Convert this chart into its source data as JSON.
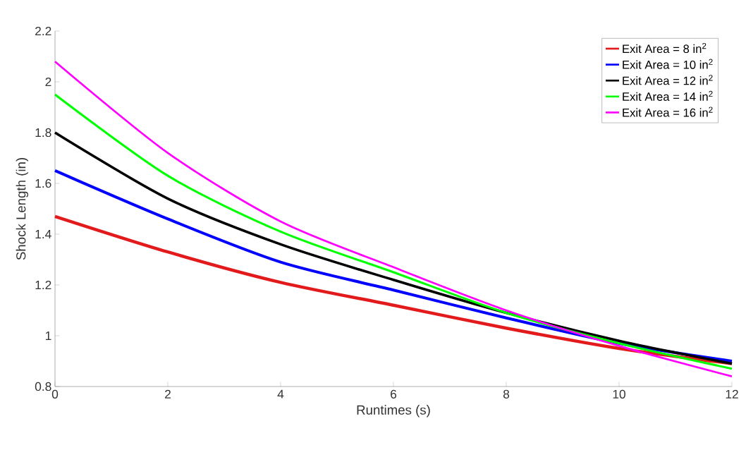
{
  "chart_data": {
    "type": "line",
    "xlabel": "Runtimes (s)",
    "ylabel": "Shock Length (in)",
    "x": [
      0,
      2,
      4,
      6,
      8,
      10,
      12
    ],
    "series": [
      {
        "name": "Exit Area = 8 in$^{2}$",
        "color": "#e31a1c",
        "values": [
          1.47,
          1.33,
          1.21,
          1.12,
          1.03,
          0.95,
          0.89
        ]
      },
      {
        "name": "Exit Area = 10 in$^{2}$",
        "color": "#0000ff",
        "values": [
          1.65,
          1.46,
          1.29,
          1.18,
          1.07,
          0.97,
          0.9
        ]
      },
      {
        "name": "Exit Area = 12 in$^{2}$",
        "color": "#000000",
        "values": [
          1.8,
          1.54,
          1.36,
          1.22,
          1.09,
          0.98,
          0.89
        ]
      },
      {
        "name": "Exit Area = 14 in$^{2}$",
        "color": "#00ff00",
        "values": [
          1.95,
          1.63,
          1.41,
          1.25,
          1.09,
          0.97,
          0.87
        ]
      },
      {
        "name": "Exit Area = 16 in$^{2}$",
        "color": "#ff00ff",
        "values": [
          2.08,
          1.72,
          1.45,
          1.27,
          1.1,
          0.96,
          0.84
        ]
      }
    ],
    "xlim": [
      0,
      12
    ],
    "xticks": [
      0,
      2,
      4,
      6,
      8,
      10,
      12
    ],
    "ylim": [
      0.8,
      2.2
    ],
    "yticks": [
      0.8,
      1,
      1.2,
      1.4,
      1.6,
      1.8,
      2,
      2.2
    ],
    "legend": "top right",
    "grid": false,
    "marker": "none",
    "line_style": "solid"
  }
}
